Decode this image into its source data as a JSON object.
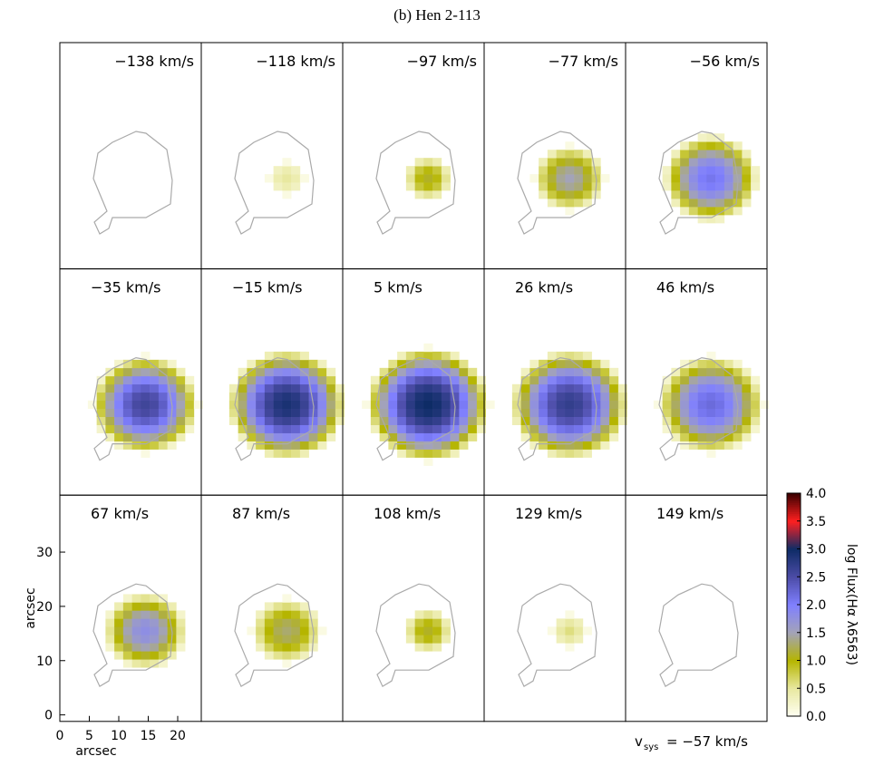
{
  "chart_data": {
    "type": "channel-map",
    "title": "(b) Hen 2-113",
    "panels": [
      {
        "label": "−138 km/s",
        "peak": 0,
        "radius": 0
      },
      {
        "label": "−118 km/s",
        "peak": 0.5,
        "radius": 3
      },
      {
        "label": "−97 km/s",
        "peak": 1.1,
        "radius": 4
      },
      {
        "label": "−77 km/s",
        "peak": 1.5,
        "radius": 6
      },
      {
        "label": "−56 km/s",
        "peak": 2.1,
        "radius": 8
      },
      {
        "label": "−35 km/s",
        "peak": 2.6,
        "radius": 9
      },
      {
        "label": "−15 km/s",
        "peak": 2.9,
        "radius": 10
      },
      {
        "label": "5 km/s",
        "peak": 3.0,
        "radius": 10.5
      },
      {
        "label": "26 km/s",
        "peak": 2.7,
        "radius": 10
      },
      {
        "label": "46 km/s",
        "peak": 2.2,
        "radius": 9
      },
      {
        "label": "67 km/s",
        "peak": 1.8,
        "radius": 7
      },
      {
        "label": "87 km/s",
        "peak": 1.3,
        "radius": 6
      },
      {
        "label": "108 km/s",
        "peak": 1.1,
        "radius": 4
      },
      {
        "label": "129 km/s",
        "peak": 0.6,
        "radius": 3
      },
      {
        "label": "149 km/s",
        "peak": 0,
        "radius": 0
      }
    ],
    "center": [
      14.5,
      15.5
    ],
    "xlabel": "arcsec",
    "ylabel": "arcsec",
    "xlim": [
      0,
      24
    ],
    "ylim": [
      -1.2,
      40.5
    ],
    "xticks": [
      0,
      5,
      10,
      15,
      20
    ],
    "yticks": [
      0,
      10,
      20,
      30
    ],
    "colorbar": {
      "label": "log Flux(Hα λ6563)",
      "lim": [
        0,
        4
      ],
      "ticks": [
        {
          "value": 0,
          "label": "0.0"
        },
        0.5,
        {
          "value": 1,
          "label": "1.0"
        },
        1.5,
        {
          "value": 2,
          "label": "2.0"
        },
        2.5,
        {
          "value": 3,
          "label": "3.0"
        },
        3.5,
        {
          "value": 4,
          "label": "4.0"
        }
      ],
      "colors": [
        "#fffff2",
        "#e8e8a0",
        "#b5b500",
        "#a3a3b8",
        "#8080ff",
        "#4c4ca6",
        "#0e2c66",
        "#ff2020",
        "#3a0000"
      ]
    },
    "vsys": "v",
    "vsys_sub": "sys",
    "vsys_value": "= −57 km/s"
  }
}
